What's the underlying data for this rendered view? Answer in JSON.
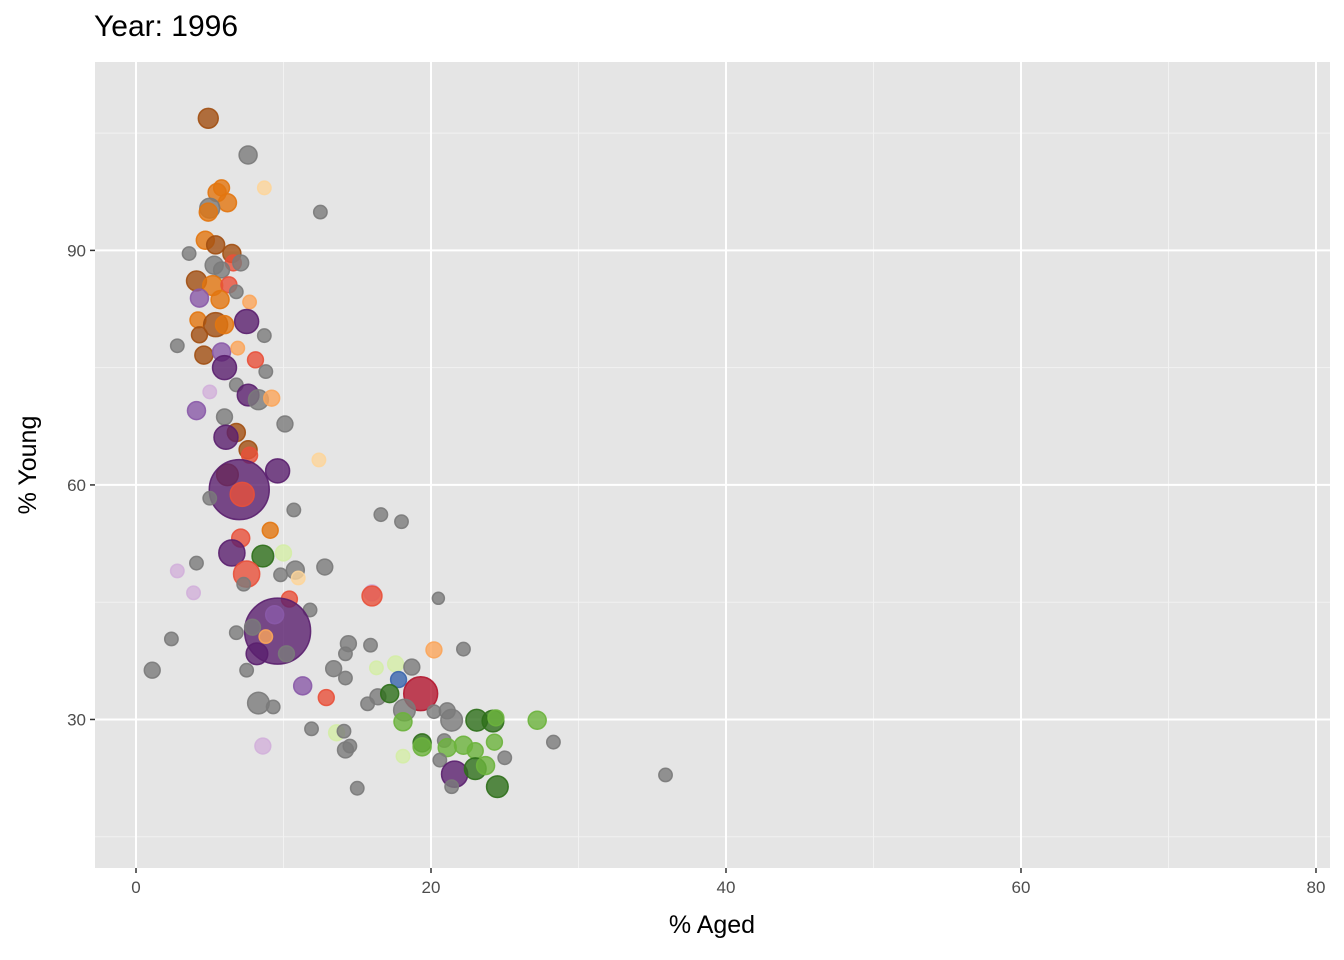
{
  "chart_data": {
    "type": "scatter",
    "title": "Year: 1996",
    "xlabel": "% Aged",
    "ylabel": "% Young",
    "xlim": [
      -2.78,
      80.95
    ],
    "ylim": [
      11.0,
      114.1
    ],
    "xticks": [
      0,
      20,
      40,
      60,
      80
    ],
    "xtick_labels": [
      "0",
      "20",
      "40",
      "60",
      "80"
    ],
    "yticks": [
      30,
      60,
      90
    ],
    "ytick_labels": [
      "30",
      "60",
      "90"
    ],
    "x_minor": [
      10,
      30,
      50,
      70
    ],
    "y_minor": [
      15,
      45,
      75,
      105
    ],
    "grid": true,
    "legend": "none",
    "palette": {
      "gray": "#7a7a7a",
      "brown": "#a14f12",
      "orange": "#e2760f",
      "lorange": "#fba55a",
      "paleorange": "#fdd59a",
      "red": "#e8503a",
      "dred": "#b3172f",
      "purple": "#5a1f6e",
      "mpurple": "#8a5aa8",
      "lpurple": "#d2b0da",
      "dgreen": "#2e6f1a",
      "green": "#6cb33c",
      "lgreen": "#d4eda6",
      "blue": "#3a65ad"
    },
    "points_fields": [
      "x",
      "y",
      "size",
      "group"
    ],
    "points": [
      [
        4.9,
        106.9,
        11,
        "brown"
      ],
      [
        7.6,
        102.2,
        9,
        "gray"
      ],
      [
        8.7,
        98.0,
        5,
        "paleorange"
      ],
      [
        12.5,
        94.9,
        5,
        "gray"
      ],
      [
        5.8,
        98.0,
        7,
        "orange"
      ],
      [
        5.5,
        97.4,
        9,
        "orange"
      ],
      [
        6.2,
        96.1,
        9,
        "orange"
      ],
      [
        5.0,
        95.4,
        11,
        "gray"
      ],
      [
        4.9,
        94.9,
        9,
        "orange"
      ],
      [
        3.6,
        89.6,
        5,
        "gray"
      ],
      [
        4.7,
        91.3,
        9,
        "orange"
      ],
      [
        5.4,
        90.7,
        9,
        "brown"
      ],
      [
        6.5,
        89.6,
        9,
        "brown"
      ],
      [
        6.6,
        88.4,
        7,
        "red"
      ],
      [
        5.3,
        88.1,
        9,
        "gray"
      ],
      [
        5.8,
        87.5,
        7,
        "gray"
      ],
      [
        7.1,
        88.4,
        7,
        "gray"
      ],
      [
        4.1,
        86.1,
        11,
        "brown"
      ],
      [
        5.2,
        85.5,
        11,
        "orange"
      ],
      [
        6.3,
        85.6,
        7,
        "red"
      ],
      [
        4.3,
        83.9,
        9,
        "mpurple"
      ],
      [
        5.7,
        83.7,
        9,
        "orange"
      ],
      [
        7.7,
        83.4,
        5,
        "lorange"
      ],
      [
        6.8,
        84.7,
        5,
        "gray"
      ],
      [
        4.2,
        81.1,
        7,
        "orange"
      ],
      [
        5.4,
        80.5,
        16,
        "brown"
      ],
      [
        7.5,
        80.9,
        16,
        "purple"
      ],
      [
        6.0,
        80.5,
        9,
        "orange"
      ],
      [
        4.3,
        79.2,
        7,
        "brown"
      ],
      [
        8.7,
        79.1,
        5,
        "gray"
      ],
      [
        2.8,
        77.8,
        5,
        "gray"
      ],
      [
        4.6,
        76.6,
        9,
        "brown"
      ],
      [
        5.8,
        77.0,
        9,
        "mpurple"
      ],
      [
        6.9,
        77.5,
        5,
        "lorange"
      ],
      [
        8.1,
        76.0,
        7,
        "red"
      ],
      [
        6.0,
        75.0,
        16,
        "purple"
      ],
      [
        8.8,
        74.5,
        5,
        "gray"
      ],
      [
        6.8,
        72.8,
        5,
        "gray"
      ],
      [
        5.0,
        71.9,
        5,
        "lpurple"
      ],
      [
        7.6,
        71.5,
        13,
        "purple"
      ],
      [
        8.3,
        70.9,
        11,
        "gray"
      ],
      [
        9.2,
        71.1,
        7,
        "lorange"
      ],
      [
        4.1,
        69.5,
        9,
        "mpurple"
      ],
      [
        6.0,
        68.7,
        7,
        "gray"
      ],
      [
        10.1,
        67.8,
        7,
        "gray"
      ],
      [
        6.8,
        66.7,
        9,
        "brown"
      ],
      [
        6.1,
        66.1,
        16,
        "purple"
      ],
      [
        7.6,
        64.5,
        9,
        "brown"
      ],
      [
        7.7,
        63.8,
        7,
        "red"
      ],
      [
        12.4,
        63.2,
        5,
        "paleorange"
      ],
      [
        6.2,
        61.3,
        13,
        "brown"
      ],
      [
        9.6,
        61.8,
        16,
        "purple"
      ],
      [
        7.0,
        59.4,
        100,
        "purple"
      ],
      [
        7.2,
        58.8,
        16,
        "red"
      ],
      [
        5.0,
        58.3,
        5,
        "gray"
      ],
      [
        10.7,
        56.8,
        5,
        "gray"
      ],
      [
        16.6,
        56.2,
        5,
        "gray"
      ],
      [
        18.0,
        55.3,
        5,
        "gray"
      ],
      [
        9.1,
        54.2,
        7,
        "orange"
      ],
      [
        7.1,
        53.2,
        9,
        "red"
      ],
      [
        6.5,
        51.3,
        19,
        "purple"
      ],
      [
        8.6,
        50.9,
        13,
        "dgreen"
      ],
      [
        10.0,
        51.3,
        7,
        "lgreen"
      ],
      [
        4.1,
        50.0,
        5,
        "gray"
      ],
      [
        7.5,
        48.6,
        19,
        "red"
      ],
      [
        10.8,
        49.1,
        9,
        "gray"
      ],
      [
        12.8,
        49.5,
        7,
        "gray"
      ],
      [
        9.8,
        48.5,
        5,
        "gray"
      ],
      [
        11.0,
        48.1,
        5,
        "paleorange"
      ],
      [
        2.8,
        49.0,
        5,
        "lpurple"
      ],
      [
        7.3,
        47.3,
        5,
        "gray"
      ],
      [
        3.9,
        46.2,
        5,
        "lpurple"
      ],
      [
        10.4,
        45.4,
        7,
        "red"
      ],
      [
        11.8,
        44.0,
        5,
        "gray"
      ],
      [
        20.5,
        45.5,
        4,
        "gray"
      ],
      [
        16.0,
        46.2,
        7,
        "lpurple"
      ],
      [
        16.0,
        45.8,
        11,
        "red"
      ],
      [
        9.6,
        41.3,
        121,
        "purple"
      ],
      [
        9.4,
        43.4,
        9,
        "mpurple"
      ],
      [
        8.8,
        40.6,
        5,
        "lorange"
      ],
      [
        6.8,
        41.1,
        5,
        "gray"
      ],
      [
        7.9,
        41.8,
        7,
        "gray"
      ],
      [
        2.4,
        40.3,
        5,
        "gray"
      ],
      [
        1.1,
        36.3,
        7,
        "gray"
      ],
      [
        8.2,
        38.4,
        13,
        "purple"
      ],
      [
        10.2,
        38.4,
        7,
        "gray"
      ],
      [
        14.4,
        39.7,
        7,
        "gray"
      ],
      [
        14.2,
        38.4,
        5,
        "gray"
      ],
      [
        15.9,
        39.5,
        5,
        "gray"
      ],
      [
        20.2,
        38.9,
        7,
        "lorange"
      ],
      [
        22.2,
        39.0,
        5,
        "gray"
      ],
      [
        7.5,
        36.3,
        5,
        "gray"
      ],
      [
        13.4,
        36.5,
        7,
        "gray"
      ],
      [
        14.2,
        35.3,
        5,
        "gray"
      ],
      [
        16.3,
        36.6,
        5,
        "lgreen"
      ],
      [
        17.6,
        37.1,
        7,
        "lgreen"
      ],
      [
        18.7,
        36.7,
        7,
        "gray"
      ],
      [
        17.8,
        35.1,
        7,
        "blue"
      ],
      [
        11.3,
        34.3,
        9,
        "mpurple"
      ],
      [
        16.4,
        32.9,
        7,
        "gray"
      ],
      [
        12.9,
        32.8,
        7,
        "red"
      ],
      [
        19.3,
        33.3,
        32,
        "dred"
      ],
      [
        17.2,
        33.3,
        9,
        "dgreen"
      ],
      [
        8.3,
        32.1,
        13,
        "gray"
      ],
      [
        9.3,
        31.6,
        5,
        "gray"
      ],
      [
        15.7,
        32.0,
        5,
        "gray"
      ],
      [
        18.2,
        31.2,
        13,
        "gray"
      ],
      [
        18.1,
        29.7,
        9,
        "green"
      ],
      [
        20.2,
        31.0,
        5,
        "gray"
      ],
      [
        21.1,
        31.1,
        7,
        "gray"
      ],
      [
        21.4,
        29.9,
        13,
        "gray"
      ],
      [
        23.1,
        29.9,
        13,
        "dgreen"
      ],
      [
        24.2,
        29.8,
        13,
        "dgreen"
      ],
      [
        24.4,
        30.2,
        7,
        "green"
      ],
      [
        27.2,
        29.9,
        9,
        "green"
      ],
      [
        28.3,
        27.1,
        5,
        "gray"
      ],
      [
        19.4,
        27.0,
        9,
        "dgreen"
      ],
      [
        19.4,
        26.5,
        9,
        "green"
      ],
      [
        20.9,
        27.3,
        5,
        "gray"
      ],
      [
        21.1,
        26.4,
        9,
        "green"
      ],
      [
        22.2,
        26.7,
        9,
        "green"
      ],
      [
        23.0,
        26.0,
        7,
        "green"
      ],
      [
        24.3,
        27.1,
        7,
        "green"
      ],
      [
        25.0,
        25.1,
        5,
        "gray"
      ],
      [
        20.6,
        24.8,
        5,
        "gray"
      ],
      [
        18.1,
        25.3,
        5,
        "lgreen"
      ],
      [
        13.6,
        28.3,
        7,
        "lgreen"
      ],
      [
        14.1,
        28.5,
        5,
        "gray"
      ],
      [
        11.9,
        28.8,
        5,
        "gray"
      ],
      [
        14.2,
        26.1,
        7,
        "gray"
      ],
      [
        14.5,
        26.6,
        5,
        "gray"
      ],
      [
        8.6,
        26.6,
        7,
        "lpurple"
      ],
      [
        21.6,
        23.0,
        19,
        "purple"
      ],
      [
        23.0,
        23.7,
        13,
        "dgreen"
      ],
      [
        23.7,
        24.1,
        9,
        "green"
      ],
      [
        24.5,
        21.4,
        13,
        "dgreen"
      ],
      [
        21.4,
        21.4,
        5,
        "gray"
      ],
      [
        15.0,
        21.2,
        5,
        "gray"
      ],
      [
        35.9,
        22.9,
        5,
        "gray"
      ]
    ]
  }
}
